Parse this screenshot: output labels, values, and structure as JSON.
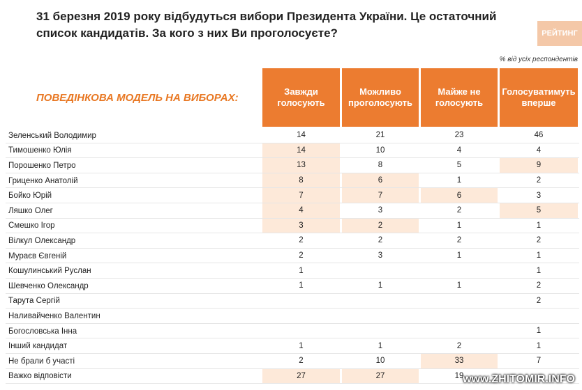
{
  "header": {
    "title": "31 березня 2019 року відбудуться вибори Президента України. Це остаточний список кандидатів. За кого з них Ви проголосуєте?",
    "logo": "РЕЙТИНГ",
    "note": "% від усіх респондентів"
  },
  "table": {
    "section": "ПОВЕДІНКОВА МОДЕЛЬ НА ВИБОРАХ:",
    "columns": [
      "Завжди голосують",
      "Можливо проголосують",
      "Майже не голосують",
      "Голосуватимуть вперше"
    ],
    "rows": [
      {
        "name": "Зеленський Володимир",
        "values": [
          14,
          21,
          23,
          46
        ]
      },
      {
        "name": "Тимошенко Юлія",
        "values": [
          14,
          10,
          4,
          4
        ]
      },
      {
        "name": "Порошенко Петро",
        "values": [
          13,
          8,
          5,
          9
        ]
      },
      {
        "name": "Гриценко Анатолій",
        "values": [
          8,
          6,
          1,
          2
        ]
      },
      {
        "name": "Бойко Юрій",
        "values": [
          7,
          7,
          6,
          3
        ]
      },
      {
        "name": "Ляшко Олег",
        "values": [
          4,
          3,
          2,
          5
        ]
      },
      {
        "name": "Смешко Ігор",
        "values": [
          3,
          2,
          1,
          1
        ]
      },
      {
        "name": "Вілкул Олександр",
        "values": [
          2,
          2,
          2,
          2
        ]
      },
      {
        "name": "Мураєв Євгеній",
        "values": [
          2,
          3,
          1,
          1
        ]
      },
      {
        "name": "Кошулинський Руслан",
        "values": [
          1,
          null,
          null,
          1
        ]
      },
      {
        "name": "Шевченко Олександр",
        "values": [
          1,
          1,
          1,
          2
        ]
      },
      {
        "name": "Тарута Сергій",
        "values": [
          null,
          null,
          null,
          2
        ]
      },
      {
        "name": "Наливайченко Валентин",
        "values": [
          null,
          null,
          null,
          null
        ]
      },
      {
        "name": "Богословська Інна",
        "values": [
          null,
          null,
          null,
          1
        ]
      },
      {
        "name": "Інший кандидат",
        "values": [
          1,
          1,
          2,
          1
        ]
      },
      {
        "name": "Не брали б участі",
        "values": [
          2,
          10,
          33,
          7
        ]
      },
      {
        "name": "Важко відповісти",
        "values": [
          27,
          27,
          19,
          null
        ]
      }
    ]
  },
  "watermark": "www.ZHITOMIR.INFO"
}
